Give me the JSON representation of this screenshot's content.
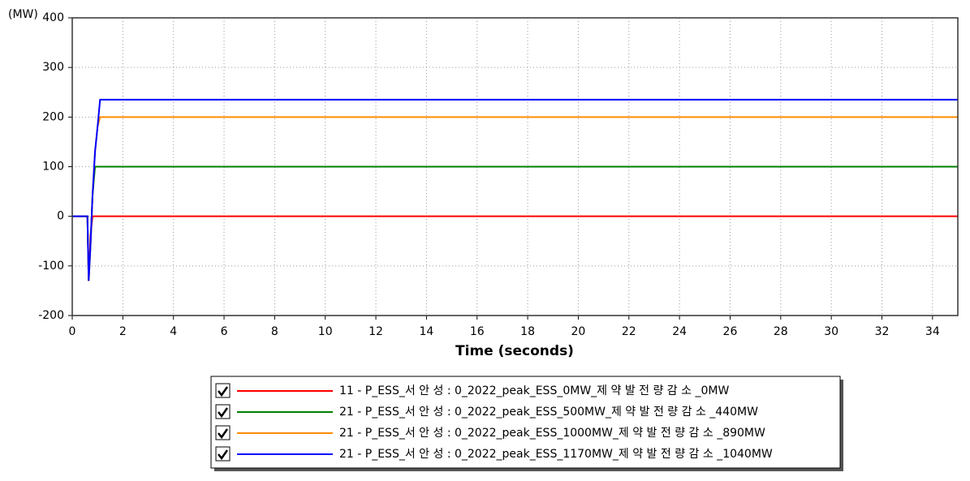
{
  "chart_data": {
    "type": "line",
    "y_unit": "(MW)",
    "xlabel": "Time (seconds)",
    "x": [
      0,
      0.6,
      0.65,
      0.72,
      0.8,
      0.9,
      1.0,
      1.1,
      35
    ],
    "series": [
      {
        "name": "11 - P_ESS_서 안 성  : 0_2022_peak_ESS_0MW_제 약 발 전 량 감 소 _0MW",
        "color": "#ff0000",
        "values": [
          0,
          0,
          -130,
          -40,
          0,
          0,
          0,
          0,
          0
        ]
      },
      {
        "name": "21 - P_ESS_서 안 성  : 0_2022_peak_ESS_500MW_제 약 발 전 량 감 소 _440MW",
        "color": "#008000",
        "values": [
          0,
          0,
          -130,
          -60,
          40,
          100,
          100,
          100,
          100
        ]
      },
      {
        "name": "21 - P_ESS_서 안 성  : 0_2022_peak_ESS_1000MW_제 약 발 전 량 감 소 _890MW",
        "color": "#ff8c00",
        "values": [
          0,
          0,
          -130,
          -60,
          40,
          130,
          180,
          200,
          200
        ]
      },
      {
        "name": "21 - P_ESS_서 안 성  : 0_2022_peak_ESS_1170MW_제 약 발 전 량 감 소 _1040MW",
        "color": "#0000ff",
        "values": [
          0,
          0,
          -130,
          -60,
          40,
          130,
          180,
          235,
          235
        ]
      }
    ],
    "xlim": [
      0,
      35
    ],
    "xticks": [
      0,
      2,
      4,
      6,
      8,
      10,
      12,
      14,
      16,
      18,
      20,
      22,
      24,
      26,
      28,
      30,
      32,
      34
    ],
    "ylim": [
      -200,
      400
    ],
    "yticks": [
      -200,
      -100,
      0,
      100,
      200,
      300,
      400
    ],
    "grid": true
  }
}
